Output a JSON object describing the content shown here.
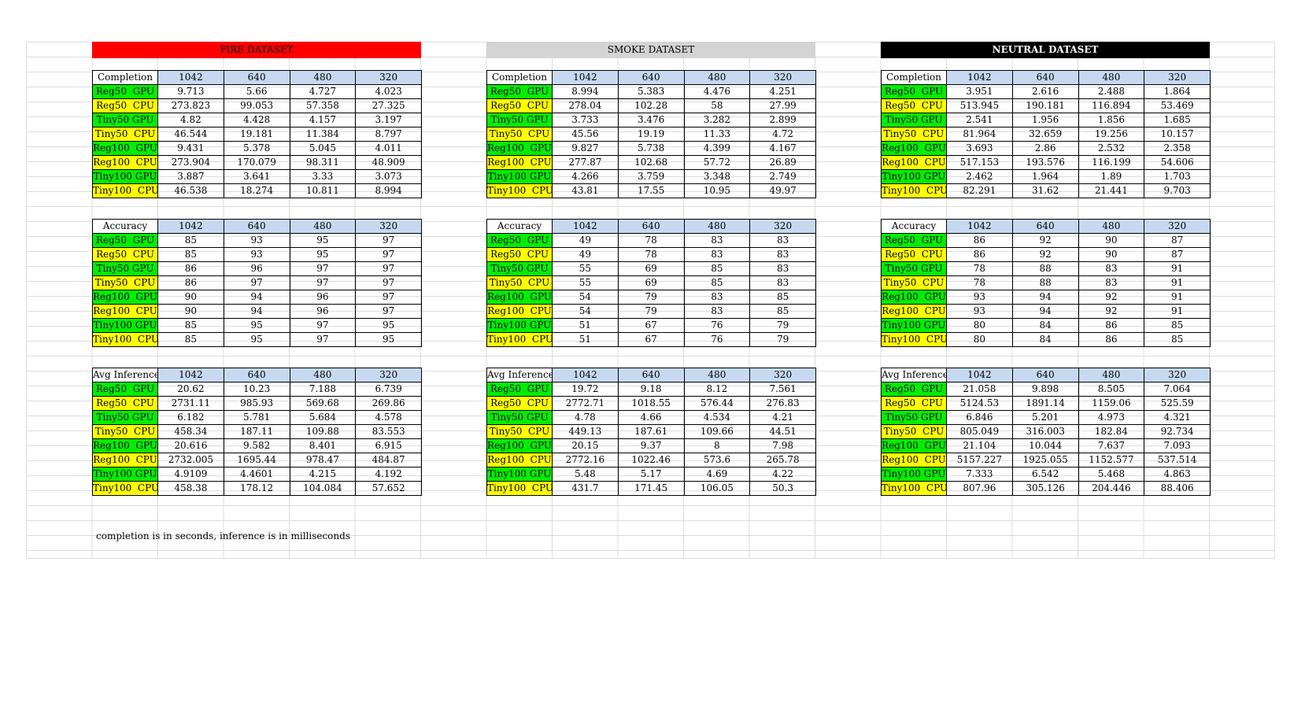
{
  "colors": {
    "fire": "#ff0000",
    "smoke": "#d4d4d4",
    "neutral": "#000000",
    "gpu": "#00ee00",
    "cpu": "#ffff00",
    "header": "#c6d9f0"
  },
  "datasets": [
    {
      "title": "FIRE DATASET",
      "tables": [
        {
          "label": "Completion",
          "columns": [
            "1042",
            "640",
            "480",
            "320"
          ],
          "rows": [
            {
              "name": "Reg50  GPU",
              "kind": "gpu",
              "values": [
                "9.713",
                "5.66",
                "4.727",
                "4.023"
              ]
            },
            {
              "name": "Reg50  CPU",
              "kind": "cpu",
              "values": [
                "273.823",
                "99.053",
                "57.358",
                "27.325"
              ]
            },
            {
              "name": "Tiny50 GPU",
              "kind": "gpu",
              "values": [
                "4.82",
                "4.428",
                "4.157",
                "3.197"
              ]
            },
            {
              "name": "Tiny50  CPU",
              "kind": "cpu",
              "values": [
                "46.544",
                "19.181",
                "11.384",
                "8.797"
              ]
            },
            {
              "name": "Reg100  GPU",
              "kind": "gpu",
              "values": [
                "9.431",
                "5.378",
                "5.045",
                "4.011"
              ]
            },
            {
              "name": "Reg100  CPU",
              "kind": "cpu",
              "values": [
                "273.904",
                "170.079",
                "98.311",
                "48.909"
              ]
            },
            {
              "name": "Tiny100 GPU",
              "kind": "gpu",
              "values": [
                "3.887",
                "3.641",
                "3.33",
                "3.073"
              ]
            },
            {
              "name": "Tiny100  CPU",
              "kind": "cpu",
              "values": [
                "46.538",
                "18.274",
                "10.811",
                "8.994"
              ]
            }
          ]
        },
        {
          "label": "Accuracy",
          "columns": [
            "1042",
            "640",
            "480",
            "320"
          ],
          "rows": [
            {
              "name": "Reg50  GPU",
              "kind": "gpu",
              "values": [
                "85",
                "93",
                "95",
                "97"
              ]
            },
            {
              "name": "Reg50  CPU",
              "kind": "cpu",
              "values": [
                "85",
                "93",
                "95",
                "97"
              ]
            },
            {
              "name": "Tiny50 GPU",
              "kind": "gpu",
              "values": [
                "86",
                "96",
                "97",
                "97"
              ]
            },
            {
              "name": "Tiny50  CPU",
              "kind": "cpu",
              "values": [
                "86",
                "97",
                "97",
                "97"
              ]
            },
            {
              "name": "Reg100  GPU",
              "kind": "gpu",
              "values": [
                "90",
                "94",
                "96",
                "97"
              ]
            },
            {
              "name": "Reg100  CPU",
              "kind": "cpu",
              "values": [
                "90",
                "94",
                "96",
                "97"
              ]
            },
            {
              "name": "Tiny100 GPU",
              "kind": "gpu",
              "values": [
                "85",
                "95",
                "97",
                "95"
              ]
            },
            {
              "name": "Tiny100  CPU",
              "kind": "cpu",
              "values": [
                "85",
                "95",
                "97",
                "95"
              ]
            }
          ]
        },
        {
          "label": "Avg Inference",
          "columns": [
            "1042",
            "640",
            "480",
            "320"
          ],
          "rows": [
            {
              "name": "Reg50  GPU",
              "kind": "gpu",
              "values": [
                "20.62",
                "10.23",
                "7.188",
                "6.739"
              ]
            },
            {
              "name": "Reg50  CPU",
              "kind": "cpu",
              "values": [
                "2731.11",
                "985.93",
                "569.68",
                "269.86"
              ]
            },
            {
              "name": "Tiny50 GPU",
              "kind": "gpu",
              "values": [
                "6.182",
                "5.781",
                "5.684",
                "4.578"
              ]
            },
            {
              "name": "Tiny50  CPU",
              "kind": "cpu",
              "values": [
                "458.34",
                "187.11",
                "109.88",
                "83.553"
              ]
            },
            {
              "name": "Reg100  GPU",
              "kind": "gpu",
              "values": [
                "20.616",
                "9.582",
                "8.401",
                "6.915"
              ]
            },
            {
              "name": "Reg100  CPU",
              "kind": "cpu",
              "values": [
                "2732.005",
                "1695.44",
                "978.47",
                "484.87"
              ]
            },
            {
              "name": "Tiny100 GPU",
              "kind": "gpu",
              "values": [
                "4.9109",
                "4.4601",
                "4.215",
                "4.192"
              ]
            },
            {
              "name": "Tiny100  CPU",
              "kind": "cpu",
              "values": [
                "458.38",
                "178.12",
                "104.084",
                "57.652"
              ]
            }
          ]
        }
      ]
    },
    {
      "title": "SMOKE DATASET",
      "tables": [
        {
          "label": "Completion",
          "columns": [
            "1042",
            "640",
            "480",
            "320"
          ],
          "rows": [
            {
              "name": "Reg50  GPU",
              "kind": "gpu",
              "values": [
                "8.994",
                "5.383",
                "4.476",
                "4.251"
              ]
            },
            {
              "name": "Reg50  CPU",
              "kind": "cpu",
              "values": [
                "278.04",
                "102.28",
                "58",
                "27.99"
              ]
            },
            {
              "name": "Tiny50 GPU",
              "kind": "gpu",
              "values": [
                "3.733",
                "3.476",
                "3.282",
                "2.899"
              ]
            },
            {
              "name": "Tiny50  CPU",
              "kind": "cpu",
              "values": [
                "45.56",
                "19.19",
                "11.33",
                "4.72"
              ]
            },
            {
              "name": "Reg100  GPU",
              "kind": "gpu",
              "values": [
                "9.827",
                "5.738",
                "4.399",
                "4.167"
              ]
            },
            {
              "name": "Reg100  CPU",
              "kind": "cpu",
              "values": [
                "277.87",
                "102.68",
                "57.72",
                "26.89"
              ]
            },
            {
              "name": "Tiny100 GPU",
              "kind": "gpu",
              "values": [
                "4.266",
                "3.759",
                "3.348",
                "2.749"
              ]
            },
            {
              "name": "Tiny100  CPU",
              "kind": "cpu",
              "values": [
                "43.81",
                "17.55",
                "10.95",
                "49.97"
              ]
            }
          ]
        },
        {
          "label": "Accuracy",
          "columns": [
            "1042",
            "640",
            "480",
            "320"
          ],
          "rows": [
            {
              "name": "Reg50  GPU",
              "kind": "gpu",
              "values": [
                "49",
                "78",
                "83",
                "83"
              ]
            },
            {
              "name": "Reg50  CPU",
              "kind": "cpu",
              "values": [
                "49",
                "78",
                "83",
                "83"
              ]
            },
            {
              "name": "Tiny50 GPU",
              "kind": "gpu",
              "values": [
                "55",
                "69",
                "85",
                "83"
              ]
            },
            {
              "name": "Tiny50  CPU",
              "kind": "cpu",
              "values": [
                "55",
                "69",
                "85",
                "83"
              ]
            },
            {
              "name": "Reg100  GPU",
              "kind": "gpu",
              "values": [
                "54",
                "79",
                "83",
                "85"
              ]
            },
            {
              "name": "Reg100  CPU",
              "kind": "cpu",
              "values": [
                "54",
                "79",
                "83",
                "85"
              ]
            },
            {
              "name": "Tiny100 GPU",
              "kind": "gpu",
              "values": [
                "51",
                "67",
                "76",
                "79"
              ]
            },
            {
              "name": "Tiny100  CPU",
              "kind": "cpu",
              "values": [
                "51",
                "67",
                "76",
                "79"
              ]
            }
          ]
        },
        {
          "label": "Avg Inference",
          "columns": [
            "1042",
            "640",
            "480",
            "320"
          ],
          "rows": [
            {
              "name": "Reg50  GPU",
              "kind": "gpu",
              "values": [
                "19.72",
                "9.18",
                "8.12",
                "7.561"
              ]
            },
            {
              "name": "Reg50  CPU",
              "kind": "cpu",
              "values": [
                "2772.71",
                "1018.55",
                "576.44",
                "276.83"
              ]
            },
            {
              "name": "Tiny50 GPU",
              "kind": "gpu",
              "values": [
                "4.78",
                "4.66",
                "4.534",
                "4.21"
              ]
            },
            {
              "name": "Tiny50  CPU",
              "kind": "cpu",
              "values": [
                "449.13",
                "187.61",
                "109.66",
                "44.51"
              ]
            },
            {
              "name": "Reg100  GPU",
              "kind": "gpu",
              "values": [
                "20.15",
                "9.37",
                "8",
                "7.98"
              ]
            },
            {
              "name": "Reg100  CPU",
              "kind": "cpu",
              "values": [
                "2772.16",
                "1022.46",
                "573.6",
                "265.78"
              ]
            },
            {
              "name": "Tiny100 GPU",
              "kind": "gpu",
              "values": [
                "5.48",
                "5.17",
                "4.69",
                "4.22"
              ]
            },
            {
              "name": "Tiny100  CPU",
              "kind": "cpu",
              "values": [
                "431.7",
                "171.45",
                "106.05",
                "50.3"
              ]
            }
          ]
        }
      ]
    },
    {
      "title": "NEUTRAL DATASET",
      "tables": [
        {
          "label": "Completion",
          "columns": [
            "1042",
            "640",
            "480",
            "320"
          ],
          "rows": [
            {
              "name": "Reg50  GPU",
              "kind": "gpu",
              "values": [
                "3.951",
                "2.616",
                "2.488",
                "1.864"
              ]
            },
            {
              "name": "Reg50  CPU",
              "kind": "cpu",
              "values": [
                "513.945",
                "190.181",
                "116.894",
                "53.469"
              ]
            },
            {
              "name": "Tiny50 GPU",
              "kind": "gpu",
              "values": [
                "2.541",
                "1.956",
                "1.856",
                "1.685"
              ]
            },
            {
              "name": "Tiny50  CPU",
              "kind": "cpu",
              "values": [
                "81.964",
                "32.659",
                "19.256",
                "10.157"
              ]
            },
            {
              "name": "Reg100  GPU",
              "kind": "gpu",
              "values": [
                "3.693",
                "2.86",
                "2.532",
                "2.358"
              ]
            },
            {
              "name": "Reg100  CPU",
              "kind": "cpu",
              "values": [
                "517.153",
                "193.576",
                "116.199",
                "54.606"
              ]
            },
            {
              "name": "Tiny100 GPU",
              "kind": "gpu",
              "values": [
                "2.462",
                "1.964",
                "1.89",
                "1.703"
              ]
            },
            {
              "name": "Tiny100  CPU",
              "kind": "cpu",
              "values": [
                "82.291",
                "31.62",
                "21.441",
                "9.703"
              ]
            }
          ]
        },
        {
          "label": "Accuracy",
          "columns": [
            "1042",
            "640",
            "480",
            "320"
          ],
          "rows": [
            {
              "name": "Reg50  GPU",
              "kind": "gpu",
              "values": [
                "86",
                "92",
                "90",
                "87"
              ]
            },
            {
              "name": "Reg50  CPU",
              "kind": "cpu",
              "values": [
                "86",
                "92",
                "90",
                "87"
              ]
            },
            {
              "name": "Tiny50 GPU",
              "kind": "gpu",
              "values": [
                "78",
                "88",
                "83",
                "91"
              ]
            },
            {
              "name": "Tiny50  CPU",
              "kind": "cpu",
              "values": [
                "78",
                "88",
                "83",
                "91"
              ]
            },
            {
              "name": "Reg100  GPU",
              "kind": "gpu",
              "values": [
                "93",
                "94",
                "92",
                "91"
              ]
            },
            {
              "name": "Reg100  CPU",
              "kind": "cpu",
              "values": [
                "93",
                "94",
                "92",
                "91"
              ]
            },
            {
              "name": "Tiny100 GPU",
              "kind": "gpu",
              "values": [
                "80",
                "84",
                "86",
                "85"
              ]
            },
            {
              "name": "Tiny100  CPU",
              "kind": "cpu",
              "values": [
                "80",
                "84",
                "86",
                "85"
              ]
            }
          ]
        },
        {
          "label": "Avg Inference",
          "columns": [
            "1042",
            "640",
            "480",
            "320"
          ],
          "rows": [
            {
              "name": "Reg50  GPU",
              "kind": "gpu",
              "values": [
                "21.058",
                "9.898",
                "8.505",
                "7.064"
              ]
            },
            {
              "name": "Reg50  CPU",
              "kind": "cpu",
              "values": [
                "5124.53",
                "1891.14",
                "1159.06",
                "525.59"
              ]
            },
            {
              "name": "Tiny50 GPU",
              "kind": "gpu",
              "values": [
                "6.846",
                "5.201",
                "4.973",
                "4.321"
              ]
            },
            {
              "name": "Tiny50  CPU",
              "kind": "cpu",
              "values": [
                "805.049",
                "316.003",
                "182.84",
                "92.734"
              ]
            },
            {
              "name": "Reg100  GPU",
              "kind": "gpu",
              "values": [
                "21.104",
                "10.044",
                "7.637",
                "7.093"
              ]
            },
            {
              "name": "Reg100  CPU",
              "kind": "cpu",
              "values": [
                "5157.227",
                "1925.055",
                "1152.577",
                "537.514"
              ]
            },
            {
              "name": "Tiny100 GPU",
              "kind": "gpu",
              "values": [
                "7.333",
                "6.542",
                "5.468",
                "4.863"
              ]
            },
            {
              "name": "Tiny100  CPU",
              "kind": "cpu",
              "values": [
                "807.96",
                "305.126",
                "204.446",
                "88.406"
              ]
            }
          ]
        }
      ]
    }
  ],
  "footnote": "completion is in seconds, inference is in milliseconds"
}
